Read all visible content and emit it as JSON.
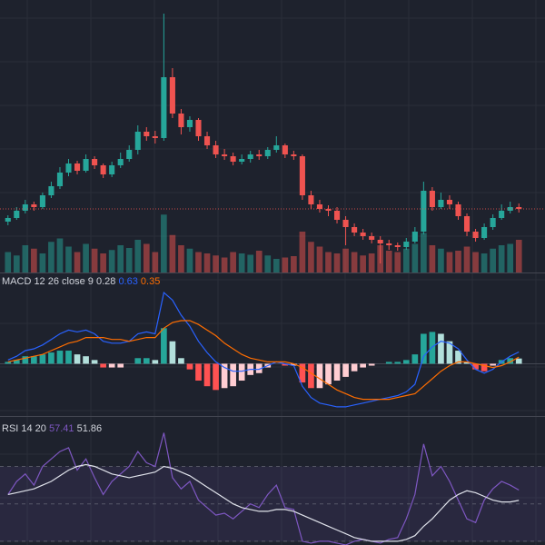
{
  "chart_data": [
    {
      "type": "candlestick",
      "color_up": "#26a69a",
      "color_down": "#ef5350",
      "ylim": [
        0,
        300
      ],
      "last_price_line": true,
      "open": [
        56,
        60,
        68,
        75,
        72,
        85,
        95,
        110,
        120,
        112,
        125,
        118,
        108,
        118,
        125,
        135,
        155,
        150,
        148,
        215,
        175,
        160,
        168,
        150,
        140,
        130,
        128,
        122,
        125,
        130,
        128,
        135,
        140,
        130,
        128,
        85,
        75,
        70,
        68,
        58,
        50,
        44,
        40,
        36,
        32,
        30,
        28,
        34,
        45,
        90,
        72,
        80,
        75,
        62,
        45,
        38,
        50,
        60,
        68,
        72
      ],
      "high": [
        63,
        72,
        80,
        78,
        88,
        100,
        116,
        125,
        123,
        130,
        128,
        120,
        122,
        132,
        140,
        162,
        160,
        156,
        285,
        225,
        180,
        172,
        170,
        155,
        145,
        136,
        132,
        130,
        134,
        135,
        138,
        150,
        142,
        134,
        130,
        90,
        80,
        74,
        72,
        62,
        54,
        48,
        44,
        40,
        36,
        33,
        38,
        50,
        100,
        94,
        88,
        85,
        78,
        65,
        48,
        54,
        64,
        75,
        78,
        76
      ],
      "low": [
        52,
        58,
        65,
        68,
        70,
        82,
        92,
        106,
        108,
        110,
        114,
        104,
        105,
        115,
        122,
        130,
        145,
        142,
        145,
        170,
        152,
        155,
        145,
        136,
        126,
        124,
        118,
        119,
        121,
        124,
        125,
        132,
        126,
        124,
        80,
        70,
        66,
        62,
        54,
        30,
        40,
        36,
        32,
        10,
        25,
        24,
        25,
        32,
        42,
        68,
        70,
        70,
        58,
        40,
        34,
        36,
        47,
        58,
        65,
        66
      ],
      "close": [
        60,
        68,
        75,
        72,
        85,
        95,
        110,
        120,
        112,
        125,
        118,
        108,
        118,
        125,
        135,
        155,
        150,
        148,
        215,
        175,
        160,
        168,
        150,
        140,
        130,
        128,
        122,
        125,
        130,
        128,
        135,
        140,
        130,
        128,
        85,
        75,
        70,
        68,
        58,
        50,
        44,
        40,
        36,
        32,
        30,
        28,
        34,
        45,
        90,
        72,
        80,
        75,
        62,
        45,
        38,
        50,
        60,
        68,
        72,
        70
      ]
    },
    {
      "type": "volume",
      "colors": [
        "rgba(38,166,154,0.5)",
        "rgba(239,83,80,0.5)"
      ],
      "ylim": [
        0,
        400
      ],
      "values": [
        30,
        25,
        40,
        35,
        28,
        45,
        50,
        38,
        30,
        42,
        35,
        28,
        33,
        40,
        36,
        48,
        42,
        30,
        85,
        55,
        40,
        35,
        30,
        28,
        25,
        22,
        30,
        28,
        26,
        32,
        25,
        20,
        22,
        24,
        60,
        45,
        38,
        30,
        28,
        35,
        30,
        25,
        28,
        40,
        32,
        30,
        35,
        42,
        58,
        40,
        35,
        30,
        32,
        38,
        30,
        28,
        35,
        40,
        42,
        48
      ]
    },
    {
      "type": "macd",
      "title": "MACD 12 26 close 9",
      "ylim": [
        -2.5,
        4
      ],
      "hline": 0,
      "series": [
        {
          "colors": [
            "#26a69a",
            "#b2dfdb",
            "#ffcdd2",
            "#ff5252"
          ],
          "color": "#d1d4dc",
          "values": [
            0.1,
            0.2,
            0.4,
            0.4,
            0.5,
            0.6,
            0.7,
            0.7,
            0.5,
            0.4,
            0.2,
            -0.2,
            -0.2,
            -0.2,
            0,
            0.3,
            0.3,
            0.2,
            1.9,
            1.2,
            0.3,
            -0.3,
            -0.9,
            -1.2,
            -1.4,
            -1.3,
            -1.2,
            -0.9,
            -0.6,
            -0.5,
            -0.2,
            0,
            -0.1,
            -0.1,
            -1.0,
            -1.3,
            -1.3,
            -1.1,
            -0.9,
            -0.7,
            -0.4,
            -0.2,
            -0.1,
            0,
            0.1,
            0.1,
            0.2,
            0.5,
            1.6,
            1.7,
            1.6,
            1.2,
            0.7,
            0.1,
            -0.3,
            -0.4,
            -0.1,
            0.2,
            0.3,
            0.28
          ]
        },
        {
          "color": "#2962ff",
          "values": [
            0.2,
            0.4,
            0.7,
            0.8,
            1.0,
            1.3,
            1.6,
            1.8,
            1.7,
            1.8,
            1.6,
            1.2,
            1.1,
            1.1,
            1.2,
            1.6,
            1.7,
            1.6,
            3.8,
            3.4,
            2.6,
            2.0,
            1.2,
            0.6,
            0.1,
            -0.2,
            -0.4,
            -0.4,
            -0.3,
            -0.3,
            -0.1,
            0.1,
            0.0,
            -0.1,
            -1.2,
            -1.8,
            -2.1,
            -2.2,
            -2.3,
            -2.3,
            -2.2,
            -2.1,
            -2.0,
            -1.9,
            -1.8,
            -1.7,
            -1.5,
            -1.1,
            0.4,
            0.9,
            1.2,
            1.1,
            0.8,
            0.2,
            -0.3,
            -0.5,
            -0.3,
            0.1,
            0.4,
            0.63
          ]
        },
        {
          "color": "#ff6d00",
          "values": [
            0.1,
            0.2,
            0.3,
            0.4,
            0.5,
            0.7,
            0.9,
            1.1,
            1.2,
            1.4,
            1.4,
            1.4,
            1.3,
            1.3,
            1.2,
            1.3,
            1.4,
            1.4,
            1.9,
            2.2,
            2.3,
            2.3,
            2.1,
            1.8,
            1.5,
            1.1,
            0.8,
            0.5,
            0.3,
            0.2,
            0.1,
            0.1,
            0.1,
            0.0,
            -0.2,
            -0.5,
            -0.8,
            -1.1,
            -1.4,
            -1.6,
            -1.8,
            -1.9,
            -1.9,
            -1.9,
            -1.9,
            -1.8,
            -1.7,
            -1.6,
            -1.2,
            -0.8,
            -0.4,
            -0.1,
            0.1,
            0.1,
            0.0,
            -0.1,
            -0.2,
            -0.1,
            0.1,
            0.35
          ]
        }
      ]
    },
    {
      "type": "rsi",
      "title": "RSI 14 20",
      "ylim": [
        28,
        96
      ],
      "band": [
        30,
        70
      ],
      "midline": 50,
      "band_color": "rgba(126,87,194,0.12)",
      "series": [
        {
          "color": "#7e57c2",
          "values": [
            55,
            62,
            66,
            60,
            70,
            74,
            78,
            80,
            68,
            74,
            64,
            55,
            62,
            66,
            70,
            78,
            72,
            70,
            88,
            64,
            58,
            62,
            52,
            48,
            44,
            45,
            42,
            46,
            50,
            48,
            55,
            60,
            48,
            47,
            30,
            29,
            30,
            30,
            29,
            28,
            30,
            31,
            30,
            29,
            31,
            32,
            42,
            55,
            82,
            65,
            70,
            62,
            52,
            42,
            40,
            52,
            58,
            62,
            60,
            57.41
          ]
        },
        {
          "color": "#e0e3eb",
          "values": [
            55,
            56,
            57,
            58,
            60,
            62,
            65,
            68,
            70,
            71,
            70,
            68,
            66,
            65,
            64,
            65,
            66,
            67,
            70,
            69,
            67,
            65,
            62,
            59,
            56,
            53,
            50,
            48,
            47,
            46,
            46,
            47,
            47,
            46,
            44,
            42,
            40,
            38,
            36,
            34,
            32,
            31,
            30,
            30,
            30,
            30,
            31,
            33,
            38,
            42,
            47,
            52,
            55,
            57,
            56,
            54,
            52,
            51,
            51,
            51.86
          ]
        }
      ]
    }
  ]
}
